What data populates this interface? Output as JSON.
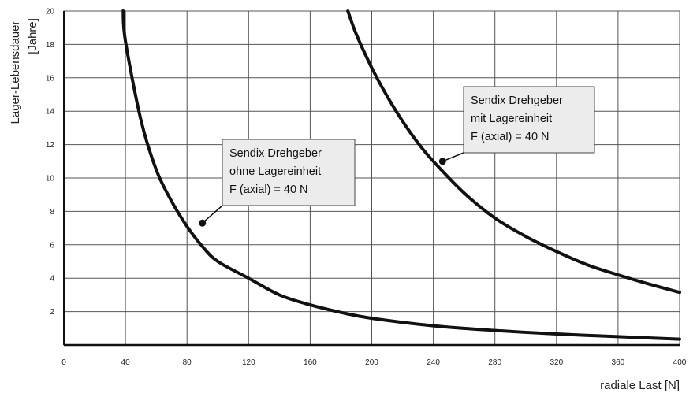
{
  "chart_data": {
    "type": "line",
    "title": "",
    "xlabel": "radiale Last [N]",
    "ylabel_lines": [
      "Lager-Lebensdauer",
      "[Jahre]"
    ],
    "xlim": [
      0,
      400
    ],
    "ylim": [
      0,
      20
    ],
    "x_ticks": [
      0,
      40,
      80,
      120,
      160,
      200,
      240,
      280,
      320,
      360,
      400
    ],
    "y_ticks": [
      2,
      4,
      6,
      8,
      10,
      12,
      14,
      16,
      18,
      20
    ],
    "grid": true,
    "series": [
      {
        "name_lines": [
          "Sendix Drehgeber",
          "ohne Lagereinheit",
          "F (axial) = 40 N"
        ],
        "x": [
          38.5,
          40,
          50,
          60,
          70,
          80,
          90,
          100,
          120,
          140,
          160,
          180,
          200,
          240,
          280,
          320,
          360,
          400
        ],
        "y": [
          20.0,
          18.2,
          13.5,
          10.5,
          8.6,
          7.1,
          5.9,
          5.0,
          4.0,
          3.0,
          2.4,
          1.95,
          1.6,
          1.15,
          0.87,
          0.66,
          0.5,
          0.35
        ],
        "label_anchor": {
          "x": 90,
          "y": 7.3
        }
      },
      {
        "name_lines": [
          "Sendix Drehgeber",
          "mit Lagereinheit",
          "F (axial) = 40 N"
        ],
        "x": [
          184.5,
          190,
          200,
          210,
          220,
          230,
          240,
          260,
          280,
          300,
          320,
          340,
          360,
          380,
          400
        ],
        "y": [
          20.0,
          18.6,
          16.6,
          14.9,
          13.4,
          12.1,
          11.0,
          9.1,
          7.6,
          6.5,
          5.6,
          4.8,
          4.2,
          3.65,
          3.15
        ],
        "label_anchor": {
          "x": 246,
          "y": 11.0
        }
      }
    ]
  }
}
